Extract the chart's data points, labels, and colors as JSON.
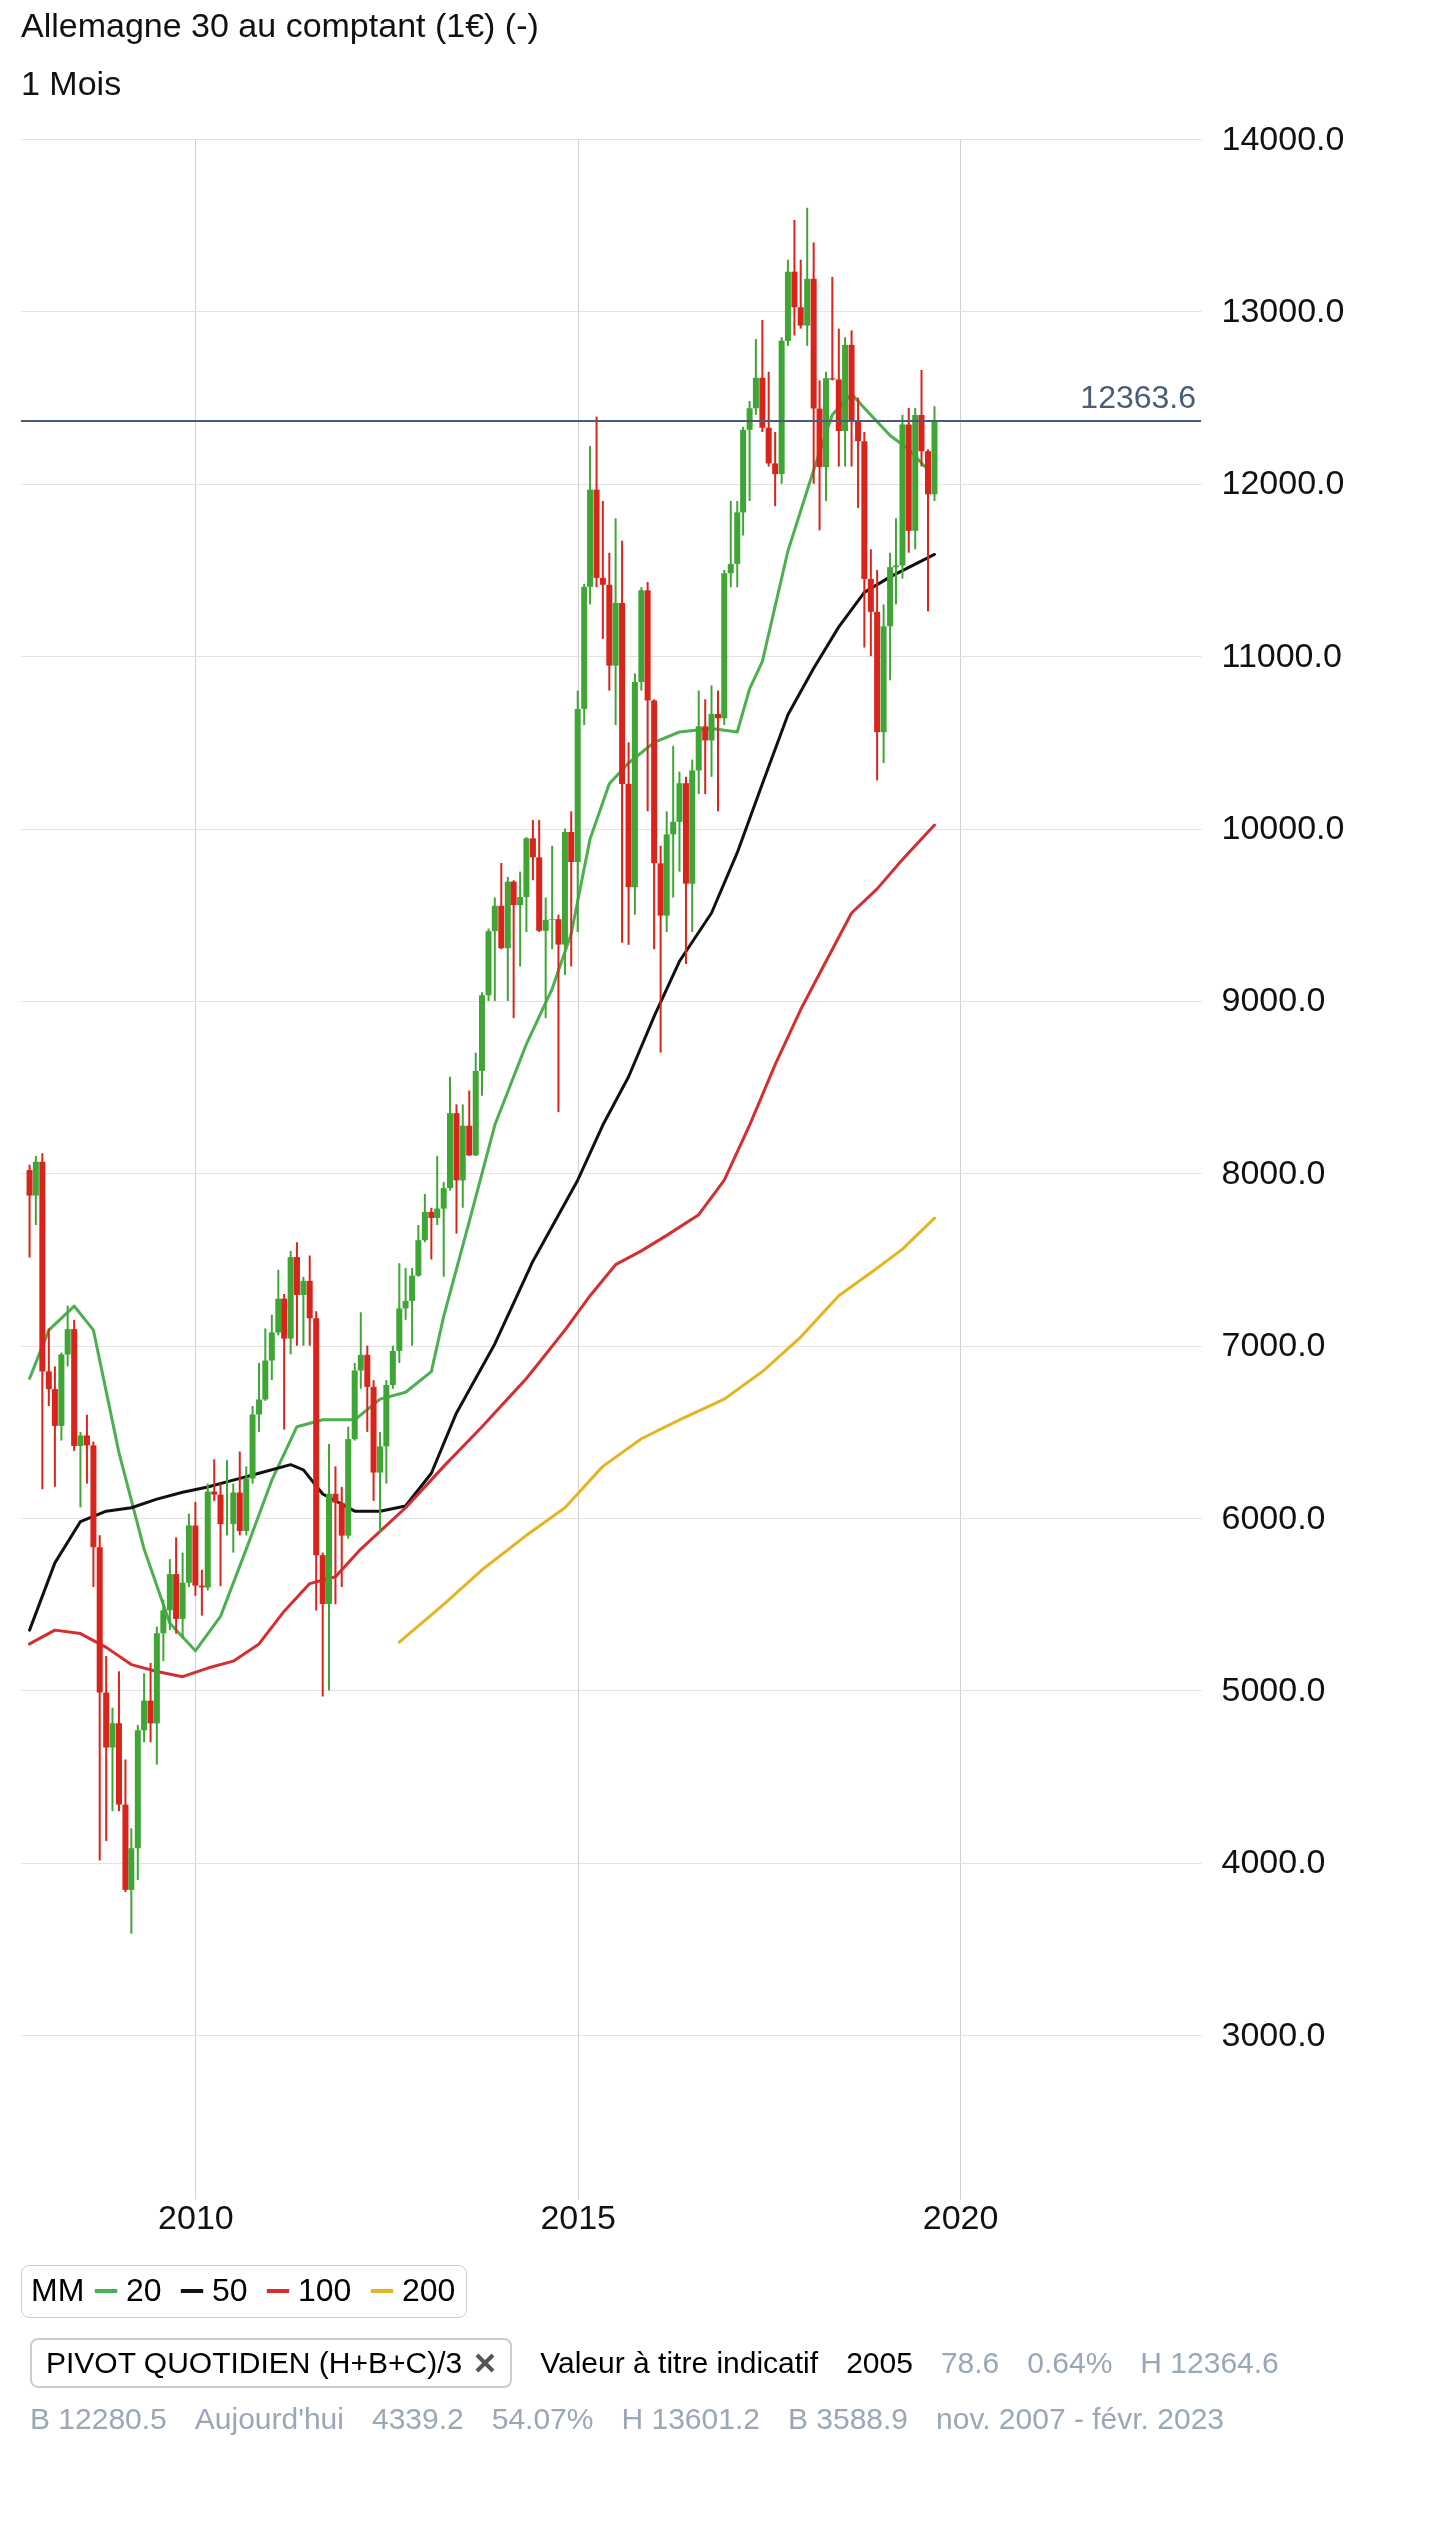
{
  "chart_data": {
    "type": "candlestick",
    "title": "Allemagne 30 au comptant (1€) (-)",
    "subtitle": "1 Mois",
    "x": [
      "2007-11",
      "2007-12",
      "2008-01",
      "2008-02",
      "2008-03",
      "2008-04",
      "2008-05",
      "2008-06",
      "2008-07",
      "2008-08",
      "2008-09",
      "2008-10",
      "2008-11",
      "2008-12",
      "2009-01",
      "2009-02",
      "2009-03",
      "2009-04",
      "2009-05",
      "2009-06",
      "2009-07",
      "2009-08",
      "2009-09",
      "2009-10",
      "2009-11",
      "2009-12",
      "2010-01",
      "2010-02",
      "2010-03",
      "2010-04",
      "2010-05",
      "2010-06",
      "2010-07",
      "2010-08",
      "2010-09",
      "2010-10",
      "2010-11",
      "2010-12",
      "2011-01",
      "2011-02",
      "2011-03",
      "2011-04",
      "2011-05",
      "2011-06",
      "2011-07",
      "2011-08",
      "2011-09",
      "2011-10",
      "2011-11",
      "2011-12",
      "2012-01",
      "2012-02",
      "2012-03",
      "2012-04",
      "2012-05",
      "2012-06",
      "2012-07",
      "2012-08",
      "2012-09",
      "2012-10",
      "2012-11",
      "2012-12",
      "2013-01",
      "2013-02",
      "2013-03",
      "2013-04",
      "2013-05",
      "2013-06",
      "2013-07",
      "2013-08",
      "2013-09",
      "2013-10",
      "2013-11",
      "2013-12",
      "2014-01",
      "2014-02",
      "2014-03",
      "2014-04",
      "2014-05",
      "2014-06",
      "2014-07",
      "2014-08",
      "2014-09",
      "2014-10",
      "2014-11",
      "2014-12",
      "2015-01",
      "2015-02",
      "2015-03",
      "2015-04",
      "2015-05",
      "2015-06",
      "2015-07",
      "2015-08",
      "2015-09",
      "2015-10",
      "2015-11",
      "2015-12",
      "2016-01",
      "2016-02",
      "2016-03",
      "2016-04",
      "2016-05",
      "2016-06",
      "2016-07",
      "2016-08",
      "2016-09",
      "2016-10",
      "2016-11",
      "2016-12",
      "2017-01",
      "2017-02",
      "2017-03",
      "2017-04",
      "2017-05",
      "2017-06",
      "2017-07",
      "2017-08",
      "2017-09",
      "2017-10",
      "2017-11",
      "2017-12",
      "2018-01",
      "2018-02",
      "2018-03",
      "2018-04",
      "2018-05",
      "2018-06",
      "2018-07",
      "2018-08",
      "2018-09",
      "2018-10",
      "2018-11",
      "2018-12",
      "2019-01",
      "2019-02",
      "2019-03",
      "2019-04",
      "2019-05",
      "2019-06",
      "2019-07",
      "2019-08",
      "2019-09"
    ],
    "ohlc": [
      [
        8019,
        8050,
        7512,
        7871
      ],
      [
        7871,
        8100,
        7700,
        8067
      ],
      [
        8067,
        8117,
        6167,
        6851
      ],
      [
        6851,
        7100,
        6650,
        6748
      ],
      [
        6748,
        6880,
        6182,
        6535
      ],
      [
        6535,
        6960,
        6450,
        6949
      ],
      [
        6949,
        7232,
        6880,
        7096
      ],
      [
        7096,
        7150,
        6390,
        6418
      ],
      [
        6418,
        6500,
        6062,
        6479
      ],
      [
        6479,
        6600,
        6200,
        6422
      ],
      [
        6422,
        6444,
        5600,
        5831
      ],
      [
        5831,
        5900,
        4014,
        4988
      ],
      [
        4988,
        5200,
        4127,
        4669
      ],
      [
        4669,
        4900,
        4300,
        4810
      ],
      [
        4810,
        5111,
        4300,
        4338
      ],
      [
        4338,
        4600,
        3830,
        3843
      ],
      [
        3843,
        4200,
        3589,
        4085
      ],
      [
        4085,
        4800,
        3900,
        4769
      ],
      [
        4769,
        5100,
        4700,
        4941
      ],
      [
        4941,
        5160,
        4700,
        4809
      ],
      [
        4809,
        5370,
        4570,
        5332
      ],
      [
        5332,
        5527,
        5170,
        5465
      ],
      [
        5465,
        5762,
        5350,
        5675
      ],
      [
        5675,
        5888,
        5330,
        5415
      ],
      [
        5415,
        5800,
        5300,
        5625
      ],
      [
        5625,
        6026,
        5600,
        5957
      ],
      [
        5957,
        6094,
        5550,
        5608
      ],
      [
        5608,
        5700,
        5434,
        5598
      ],
      [
        5598,
        6200,
        5580,
        6154
      ],
      [
        6154,
        6341,
        6100,
        6136
      ],
      [
        6136,
        6200,
        5605,
        5965
      ],
      [
        5965,
        6336,
        5900,
        5966
      ],
      [
        5966,
        6200,
        5800,
        6148
      ],
      [
        6148,
        6386,
        5900,
        5925
      ],
      [
        5925,
        6300,
        5900,
        6229
      ],
      [
        6229,
        6650,
        6200,
        6601
      ],
      [
        6601,
        6900,
        6500,
        6688
      ],
      [
        6688,
        7100,
        6680,
        6914
      ],
      [
        6914,
        7180,
        6800,
        7077
      ],
      [
        7077,
        7440,
        7060,
        7273
      ],
      [
        7273,
        7300,
        6513,
        7041
      ],
      [
        7041,
        7550,
        6950,
        7514
      ],
      [
        7514,
        7600,
        7000,
        7294
      ],
      [
        7294,
        7400,
        7000,
        7376
      ],
      [
        7376,
        7523,
        7000,
        7159
      ],
      [
        7159,
        7200,
        5464,
        5785
      ],
      [
        5785,
        5800,
        4965,
        5502
      ],
      [
        5502,
        6430,
        5000,
        6141
      ],
      [
        6141,
        6300,
        5500,
        6089
      ],
      [
        6089,
        6180,
        5600,
        5898
      ],
      [
        5898,
        6530,
        5880,
        6458
      ],
      [
        6458,
        6900,
        6450,
        6856
      ],
      [
        6856,
        7194,
        6750,
        6947
      ],
      [
        6947,
        7000,
        6500,
        6761
      ],
      [
        6761,
        6800,
        6100,
        6264
      ],
      [
        6264,
        6500,
        5914,
        6416
      ],
      [
        6416,
        6800,
        6200,
        6772
      ],
      [
        6772,
        7000,
        6750,
        6970
      ],
      [
        6970,
        7478,
        6900,
        7216
      ],
      [
        7216,
        7450,
        7150,
        7260
      ],
      [
        7260,
        7450,
        7000,
        7406
      ],
      [
        7406,
        7700,
        7400,
        7612
      ],
      [
        7612,
        7880,
        7600,
        7776
      ],
      [
        7776,
        7800,
        7500,
        7741
      ],
      [
        7741,
        8100,
        7700,
        7795
      ],
      [
        7795,
        7950,
        7400,
        7914
      ],
      [
        7914,
        8560,
        7900,
        8349
      ],
      [
        8349,
        8400,
        7650,
        7959
      ],
      [
        7959,
        8400,
        7800,
        8276
      ],
      [
        8276,
        8480,
        8100,
        8104
      ],
      [
        8104,
        8700,
        8100,
        8594
      ],
      [
        8594,
        9050,
        8450,
        9033
      ],
      [
        9033,
        9420,
        9000,
        9405
      ],
      [
        9405,
        9600,
        9000,
        9552
      ],
      [
        9552,
        9800,
        9300,
        9306
      ],
      [
        9306,
        9720,
        9000,
        9692
      ],
      [
        9692,
        9700,
        8900,
        9556
      ],
      [
        9556,
        9750,
        9200,
        9603
      ],
      [
        9603,
        9950,
        9400,
        9943
      ],
      [
        9943,
        10050,
        9700,
        9833
      ],
      [
        9833,
        10050,
        9400,
        9407
      ],
      [
        9407,
        9600,
        8900,
        9470
      ],
      [
        9470,
        9900,
        9300,
        9474
      ],
      [
        9474,
        9500,
        8355,
        9327
      ],
      [
        9327,
        10000,
        9150,
        9980
      ],
      [
        9980,
        10100,
        9200,
        9806
      ],
      [
        9806,
        10800,
        9400,
        10694
      ],
      [
        10694,
        11420,
        10600,
        11402
      ],
      [
        11402,
        12220,
        11300,
        11966
      ],
      [
        11966,
        12390,
        11400,
        11454
      ],
      [
        11454,
        11900,
        11100,
        11414
      ],
      [
        11414,
        11600,
        10800,
        10945
      ],
      [
        10945,
        11800,
        10600,
        11309
      ],
      [
        11309,
        11670,
        9338,
        10259
      ],
      [
        10259,
        10500,
        9325,
        9660
      ],
      [
        9660,
        10900,
        9500,
        10850
      ],
      [
        10850,
        11400,
        10800,
        11382
      ],
      [
        11382,
        11430,
        10100,
        10743
      ],
      [
        10743,
        10750,
        9300,
        9798
      ],
      [
        9798,
        9900,
        8700,
        9495
      ],
      [
        9495,
        10100,
        9400,
        9966
      ],
      [
        9966,
        10480,
        9600,
        10039
      ],
      [
        10039,
        10330,
        9750,
        10263
      ],
      [
        10263,
        10300,
        9214,
        9680
      ],
      [
        9680,
        10400,
        9400,
        10337
      ],
      [
        10337,
        10800,
        10200,
        10593
      ],
      [
        10593,
        10750,
        10200,
        10511
      ],
      [
        10511,
        10830,
        10300,
        10665
      ],
      [
        10665,
        10800,
        10100,
        10640
      ],
      [
        10640,
        11500,
        10600,
        11481
      ],
      [
        11481,
        11900,
        11400,
        11535
      ],
      [
        11535,
        11900,
        11400,
        11834
      ],
      [
        11834,
        12330,
        11700,
        12313
      ],
      [
        12313,
        12480,
        11900,
        12438
      ],
      [
        12438,
        12840,
        12400,
        12615
      ],
      [
        12615,
        12950,
        12300,
        12325
      ],
      [
        12325,
        12650,
        12100,
        12118
      ],
      [
        12118,
        12300,
        11870,
        12056
      ],
      [
        12056,
        12850,
        12000,
        12829
      ],
      [
        12829,
        13300,
        12800,
        13230
      ],
      [
        13230,
        13530,
        12860,
        13024
      ],
      [
        13024,
        13300,
        12900,
        12918
      ],
      [
        12918,
        13601,
        12800,
        13189
      ],
      [
        13189,
        13400,
        12000,
        12436
      ],
      [
        12436,
        12600,
        11730,
        12097
      ],
      [
        12097,
        12650,
        11900,
        12612
      ],
      [
        12612,
        13200,
        12600,
        12605
      ],
      [
        12605,
        12900,
        12100,
        12306
      ],
      [
        12306,
        12850,
        12100,
        12806
      ],
      [
        12806,
        12890,
        12100,
        12364
      ],
      [
        12364,
        12500,
        11860,
        12247
      ],
      [
        12247,
        12300,
        11050,
        11448
      ],
      [
        11448,
        11620,
        11000,
        11257
      ],
      [
        11257,
        11500,
        10279,
        10559
      ],
      [
        10559,
        11300,
        10380,
        11173
      ],
      [
        11173,
        11600,
        10860,
        11516
      ],
      [
        11516,
        11800,
        11300,
        11526
      ],
      [
        11526,
        12400,
        11450,
        12344
      ],
      [
        12344,
        12440,
        11600,
        11727
      ],
      [
        11727,
        12440,
        11620,
        12399
      ],
      [
        12399,
        12660,
        12100,
        12189
      ],
      [
        12189,
        12200,
        11260,
        11939
      ],
      [
        11939,
        12450,
        11900,
        12363.6
      ]
    ],
    "series": [
      {
        "name": "20",
        "type": "line",
        "color": "#4caf50",
        "x": [
          "2007-11",
          "2008-02",
          "2008-06",
          "2008-09",
          "2009-01",
          "2009-05",
          "2009-09",
          "2010-01",
          "2010-05",
          "2010-09",
          "2011-01",
          "2011-05",
          "2011-09",
          "2012-02",
          "2012-06",
          "2012-10",
          "2013-02",
          "2013-04",
          "2013-08",
          "2013-12",
          "2014-05",
          "2014-09",
          "2014-12",
          "2015-03",
          "2015-06",
          "2015-09",
          "2016-01",
          "2016-05",
          "2016-10",
          "2017-02",
          "2017-04",
          "2017-06",
          "2017-08",
          "2017-10",
          "2018-02",
          "2018-05",
          "2018-08",
          "2018-10",
          "2019-02",
          "2019-05",
          "2019-08"
        ],
        "values": [
          6810,
          7090,
          7230,
          7090,
          6380,
          5820,
          5390,
          5230,
          5430,
          5820,
          6220,
          6530,
          6570,
          6570,
          6690,
          6730,
          6850,
          7170,
          7720,
          8280,
          8750,
          9070,
          9390,
          9940,
          10260,
          10380,
          10500,
          10560,
          10580,
          10560,
          10810,
          10970,
          11290,
          11610,
          12080,
          12400,
          12520,
          12440,
          12280,
          12200,
          12080
        ]
      },
      {
        "name": "50",
        "type": "line",
        "color": "#111111",
        "x": [
          "2007-11",
          "2008-03",
          "2008-07",
          "2008-11",
          "2009-03",
          "2009-07",
          "2009-11",
          "2010-03",
          "2010-07",
          "2010-11",
          "2011-04",
          "2011-06",
          "2011-09",
          "2012-02",
          "2012-06",
          "2012-10",
          "2013-02",
          "2013-06",
          "2013-12",
          "2014-06",
          "2015-01",
          "2015-05",
          "2015-09",
          "2016-01",
          "2016-05",
          "2016-10",
          "2017-02",
          "2017-06",
          "2017-10",
          "2018-02",
          "2018-06",
          "2018-10",
          "2019-02",
          "2019-09"
        ],
        "values": [
          5350,
          5740,
          5980,
          6040,
          6060,
          6110,
          6150,
          6180,
          6220,
          6260,
          6310,
          6280,
          6140,
          6040,
          6040,
          6070,
          6260,
          6610,
          7010,
          7490,
          7960,
          8280,
          8560,
          8910,
          9230,
          9510,
          9860,
          10260,
          10660,
          10930,
          11170,
          11370,
          11460,
          11590
        ]
      },
      {
        "name": "100",
        "type": "line",
        "color": "#d32f2f",
        "x": [
          "2007-11",
          "2008-03",
          "2008-07",
          "2008-11",
          "2009-03",
          "2009-07",
          "2009-11",
          "2010-03",
          "2010-07",
          "2010-11",
          "2011-03",
          "2011-07",
          "2011-11",
          "2012-03",
          "2012-10",
          "2013-04",
          "2013-10",
          "2014-05",
          "2014-11",
          "2015-03",
          "2015-07",
          "2015-11",
          "2016-03",
          "2016-08",
          "2016-12",
          "2017-04",
          "2017-08",
          "2017-12",
          "2018-04",
          "2018-08",
          "2018-12",
          "2019-04",
          "2019-09"
        ],
        "values": [
          5270,
          5350,
          5330,
          5250,
          5150,
          5110,
          5080,
          5130,
          5170,
          5270,
          5460,
          5620,
          5660,
          5820,
          6060,
          6300,
          6530,
          6810,
          7090,
          7290,
          7470,
          7550,
          7640,
          7760,
          7960,
          8280,
          8630,
          8950,
          9230,
          9510,
          9650,
          9820,
          10020
        ]
      },
      {
        "name": "200",
        "type": "line",
        "color": "#e6b422",
        "x": [
          "2012-09",
          "2013-04",
          "2013-10",
          "2014-05",
          "2014-11",
          "2015-05",
          "2015-11",
          "2016-05",
          "2016-12",
          "2017-06",
          "2017-12",
          "2018-06",
          "2018-12",
          "2019-04",
          "2019-09"
        ],
        "values": [
          5280,
          5500,
          5700,
          5900,
          6060,
          6300,
          6460,
          6570,
          6690,
          6850,
          7050,
          7290,
          7450,
          7560,
          7740
        ]
      }
    ],
    "legend_title": "MM",
    "legend": "bottom",
    "xlim": [
      "2007-10-15",
      "2023-02-01"
    ],
    "xticks": [
      "2010",
      "2015",
      "2020"
    ],
    "ylim": [
      2050,
      14000
    ],
    "yticks": [
      {
        "value": 3000,
        "label": "3000.0"
      },
      {
        "value": 4000,
        "label": "4000.0"
      },
      {
        "value": 5000,
        "label": "5000.0"
      },
      {
        "value": 6000,
        "label": "6000.0"
      },
      {
        "value": 7000,
        "label": "7000.0"
      },
      {
        "value": 8000,
        "label": "8000.0"
      },
      {
        "value": 9000,
        "label": "9000.0"
      },
      {
        "value": 10000,
        "label": "10000.0"
      },
      {
        "value": 11000,
        "label": "11000.0"
      },
      {
        "value": 12000,
        "label": "12000.0"
      },
      {
        "value": 13000,
        "label": "13000.0"
      },
      {
        "value": 14000,
        "label": "14000.0"
      }
    ],
    "grid": true,
    "ref_lines": [
      {
        "axis": "y",
        "value": 12363.6,
        "label": "12363.6",
        "color": "#4a5d78"
      }
    ],
    "annotations": [
      "PIVOT QUOTIDIEN (H+B+C)/3",
      "Valeur à titre indicatif",
      "2005",
      "78.6",
      "0.64%",
      "H 12364.6",
      "B 12280.5",
      "Aujourd'hui",
      "4339.2",
      "54.07%",
      "H 13601.2",
      "B 3588.9",
      "nov. 2007 - févr. 2023"
    ]
  }
}
